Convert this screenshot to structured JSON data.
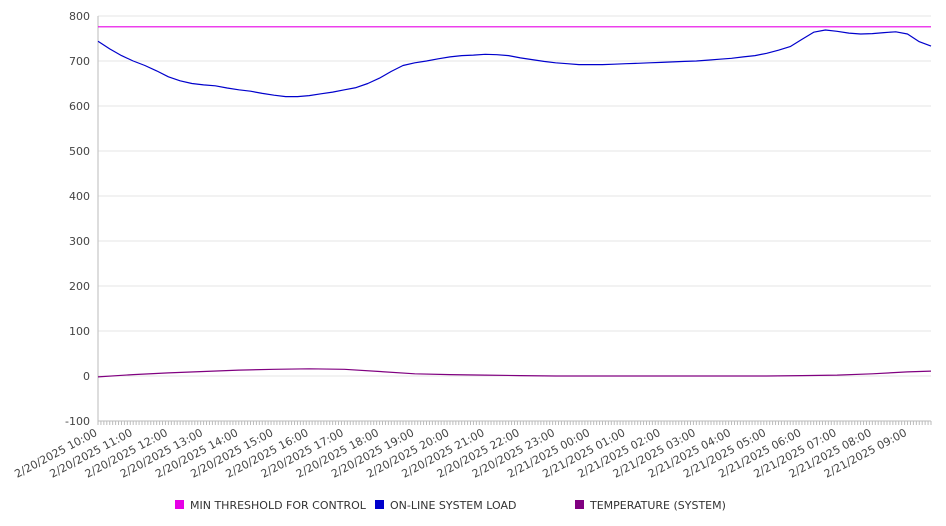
{
  "chart_data": {
    "type": "line",
    "title": "",
    "xlabel": "",
    "ylabel": "",
    "ylim": [
      -100,
      800
    ],
    "yticks": [
      -100,
      0,
      100,
      200,
      300,
      400,
      500,
      600,
      700,
      800
    ],
    "xlim": [
      "2/20/2025 10:00",
      "2/21/2025 09:40"
    ],
    "x_tick_labels": [
      "2/20/2025 10:00",
      "2/20/2025 11:00",
      "2/20/2025 12:00",
      "2/20/2025 13:00",
      "2/20/2025 14:00",
      "2/20/2025 15:00",
      "2/20/2025 16:00",
      "2/20/2025 17:00",
      "2/20/2025 18:00",
      "2/20/2025 19:00",
      "2/20/2025 20:00",
      "2/20/2025 21:00",
      "2/20/2025 22:00",
      "2/20/2025 23:00",
      "2/21/2025 00:00",
      "2/21/2025 01:00",
      "2/21/2025 02:00",
      "2/21/2025 03:00",
      "2/21/2025 04:00",
      "2/21/2025 05:00",
      "2/21/2025 06:00",
      "2/21/2025 07:00",
      "2/21/2025 08:00",
      "2/21/2025 09:00"
    ],
    "grid": "horizontal",
    "legend_position": "bottom",
    "series": [
      {
        "name": "MIN THRESHOLD FOR CONTROL",
        "color": "#e600e6",
        "points": [
          [
            "2/20/2025 10:00",
            776
          ],
          [
            "2/21/2025 09:40",
            776
          ]
        ]
      },
      {
        "name": "ON-LINE SYSTEM LOAD",
        "color": "#0000cc",
        "points": [
          [
            "2/20/2025 10:00",
            744
          ],
          [
            "2/20/2025 10:20",
            727
          ],
          [
            "2/20/2025 10:40",
            712
          ],
          [
            "2/20/2025 11:00",
            700
          ],
          [
            "2/20/2025 11:20",
            690
          ],
          [
            "2/20/2025 11:40",
            678
          ],
          [
            "2/20/2025 12:00",
            665
          ],
          [
            "2/20/2025 12:20",
            656
          ],
          [
            "2/20/2025 12:40",
            650
          ],
          [
            "2/20/2025 13:00",
            647
          ],
          [
            "2/20/2025 13:20",
            645
          ],
          [
            "2/20/2025 13:40",
            640
          ],
          [
            "2/20/2025 14:00",
            636
          ],
          [
            "2/20/2025 14:20",
            633
          ],
          [
            "2/20/2025 14:40",
            628
          ],
          [
            "2/20/2025 15:00",
            624
          ],
          [
            "2/20/2025 15:20",
            621
          ],
          [
            "2/20/2025 15:40",
            621
          ],
          [
            "2/20/2025 16:00",
            623
          ],
          [
            "2/20/2025 16:20",
            627
          ],
          [
            "2/20/2025 16:40",
            631
          ],
          [
            "2/20/2025 17:00",
            636
          ],
          [
            "2/20/2025 17:20",
            641
          ],
          [
            "2/20/2025 17:40",
            650
          ],
          [
            "2/20/2025 18:00",
            662
          ],
          [
            "2/20/2025 18:20",
            677
          ],
          [
            "2/20/2025 18:40",
            690
          ],
          [
            "2/20/2025 19:00",
            696
          ],
          [
            "2/20/2025 19:20",
            700
          ],
          [
            "2/20/2025 19:40",
            705
          ],
          [
            "2/20/2025 20:00",
            709
          ],
          [
            "2/20/2025 20:20",
            712
          ],
          [
            "2/20/2025 20:40",
            713
          ],
          [
            "2/20/2025 21:00",
            715
          ],
          [
            "2/20/2025 21:20",
            714
          ],
          [
            "2/20/2025 21:40",
            712
          ],
          [
            "2/20/2025 22:00",
            707
          ],
          [
            "2/20/2025 22:20",
            703
          ],
          [
            "2/20/2025 22:40",
            699
          ],
          [
            "2/20/2025 23:00",
            696
          ],
          [
            "2/20/2025 23:20",
            694
          ],
          [
            "2/20/2025 23:40",
            692
          ],
          [
            "2/21/2025 00:00",
            692
          ],
          [
            "2/21/2025 00:20",
            692
          ],
          [
            "2/21/2025 00:40",
            693
          ],
          [
            "2/21/2025 01:00",
            694
          ],
          [
            "2/21/2025 01:20",
            695
          ],
          [
            "2/21/2025 01:40",
            696
          ],
          [
            "2/21/2025 02:00",
            697
          ],
          [
            "2/21/2025 02:20",
            698
          ],
          [
            "2/21/2025 02:40",
            699
          ],
          [
            "2/21/2025 03:00",
            700
          ],
          [
            "2/21/2025 03:20",
            702
          ],
          [
            "2/21/2025 03:40",
            704
          ],
          [
            "2/21/2025 04:00",
            706
          ],
          [
            "2/21/2025 04:20",
            709
          ],
          [
            "2/21/2025 04:40",
            712
          ],
          [
            "2/21/2025 05:00",
            717
          ],
          [
            "2/21/2025 05:20",
            724
          ],
          [
            "2/21/2025 05:40",
            732
          ],
          [
            "2/21/2025 06:00",
            748
          ],
          [
            "2/21/2025 06:20",
            764
          ],
          [
            "2/21/2025 06:40",
            769
          ],
          [
            "2/21/2025 07:00",
            766
          ],
          [
            "2/21/2025 07:20",
            762
          ],
          [
            "2/21/2025 07:40",
            760
          ],
          [
            "2/21/2025 08:00",
            761
          ],
          [
            "2/21/2025 08:20",
            763
          ],
          [
            "2/21/2025 08:40",
            765
          ],
          [
            "2/21/2025 09:00",
            760
          ],
          [
            "2/21/2025 09:20",
            743
          ],
          [
            "2/21/2025 09:40",
            733
          ]
        ]
      },
      {
        "name": "TEMPERATURE (SYSTEM)",
        "color": "#800080",
        "points": [
          [
            "2/20/2025 10:00",
            -2
          ],
          [
            "2/20/2025 11:00",
            3
          ],
          [
            "2/20/2025 12:00",
            7
          ],
          [
            "2/20/2025 13:00",
            10
          ],
          [
            "2/20/2025 14:00",
            13
          ],
          [
            "2/20/2025 15:00",
            15
          ],
          [
            "2/20/2025 16:00",
            16
          ],
          [
            "2/20/2025 17:00",
            15
          ],
          [
            "2/20/2025 18:00",
            10
          ],
          [
            "2/20/2025 19:00",
            5
          ],
          [
            "2/20/2025 20:00",
            3
          ],
          [
            "2/20/2025 21:00",
            2
          ],
          [
            "2/20/2025 22:00",
            1
          ],
          [
            "2/20/2025 23:00",
            0
          ],
          [
            "2/21/2025 00:00",
            0
          ],
          [
            "2/21/2025 01:00",
            0
          ],
          [
            "2/21/2025 02:00",
            0
          ],
          [
            "2/21/2025 03:00",
            0
          ],
          [
            "2/21/2025 04:00",
            0
          ],
          [
            "2/21/2025 05:00",
            0
          ],
          [
            "2/21/2025 06:00",
            1
          ],
          [
            "2/21/2025 07:00",
            2
          ],
          [
            "2/21/2025 08:00",
            5
          ],
          [
            "2/21/2025 09:00",
            9
          ],
          [
            "2/21/2025 09:40",
            11
          ]
        ]
      }
    ]
  }
}
